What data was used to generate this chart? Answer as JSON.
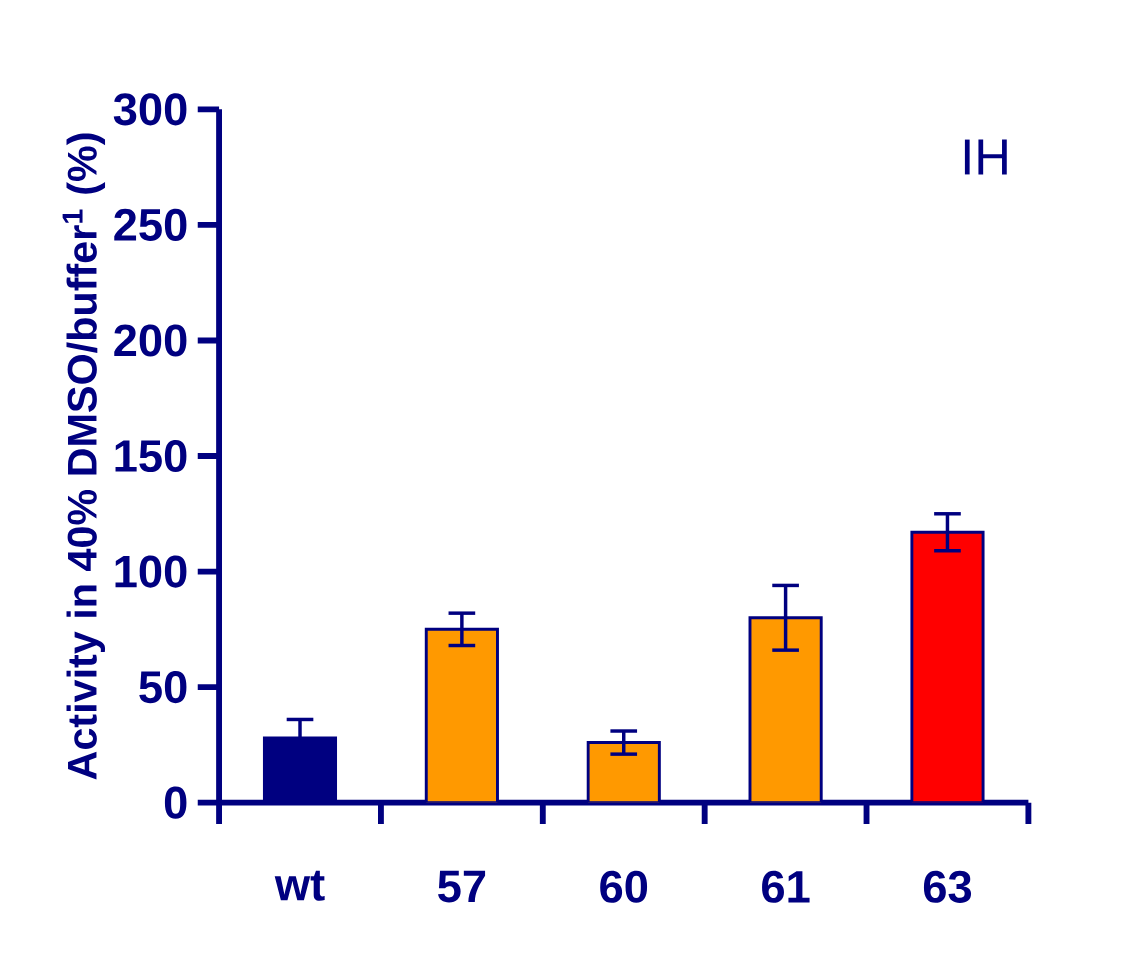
{
  "chart_data": {
    "type": "bar",
    "ylabel": "Activity in 40% DMSO/buffer$^{1}$ (%)",
    "annotations": [
      "IH"
    ],
    "categories": [
      "wt",
      "57",
      "60",
      "61",
      "63"
    ],
    "values": [
      28,
      75,
      26,
      80,
      117
    ],
    "colors": [
      "#000080",
      "#ff9900",
      "#ff9900",
      "#ff9900",
      "#ff0000"
    ],
    "errors": [
      8,
      7,
      5,
      14,
      8
    ],
    "ylim": [
      0,
      300
    ],
    "yticks": [
      0,
      50,
      100,
      150,
      200,
      250,
      300
    ],
    "grid": false
  }
}
